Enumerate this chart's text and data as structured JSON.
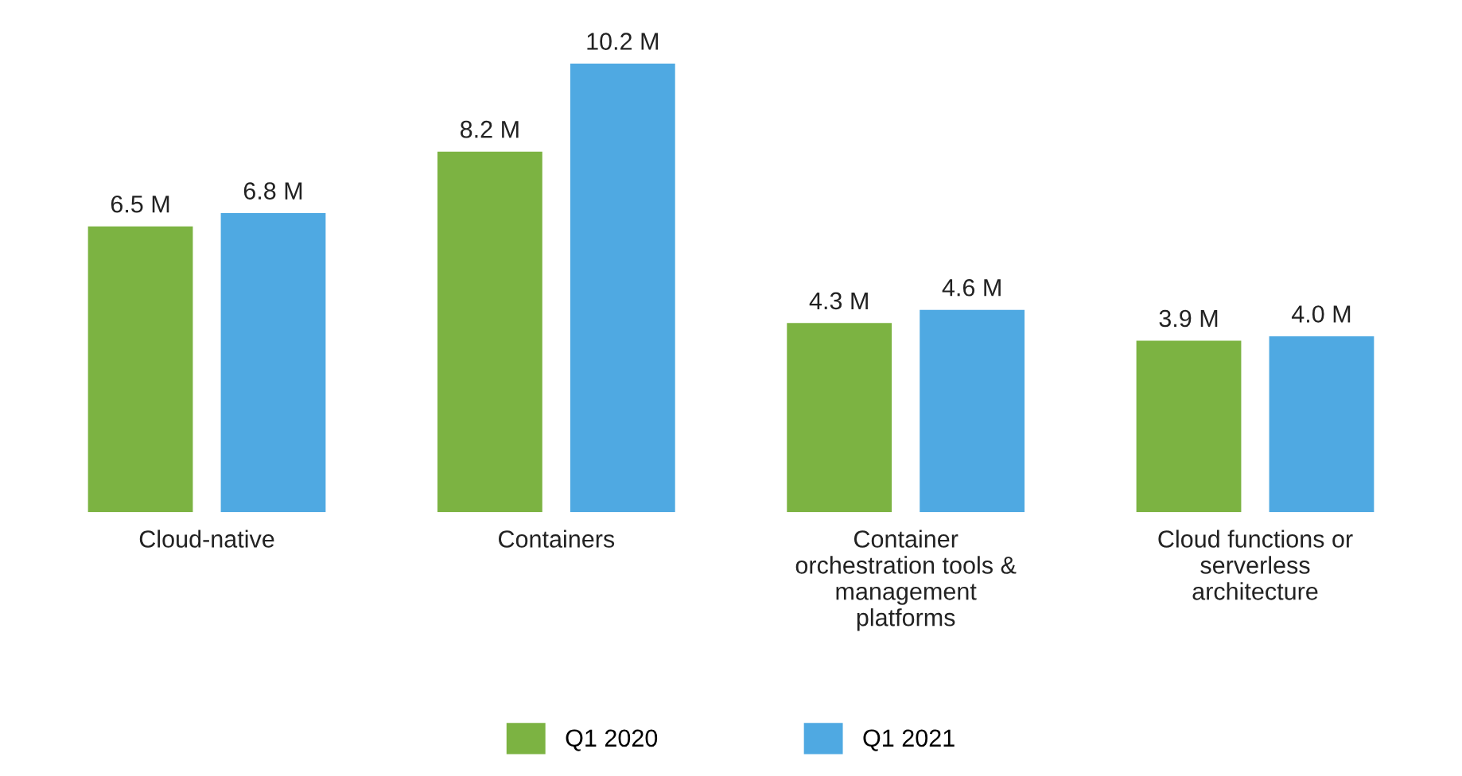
{
  "chart_data": {
    "type": "bar",
    "categories": [
      "Cloud-native",
      "Containers",
      "Container\norchestration tools &\nmanagement\nplatforms",
      "Cloud functions or\nserverless\narchitecture"
    ],
    "series": [
      {
        "name": "Q1 2020",
        "color": "#7cb342",
        "values": [
          6.5,
          8.2,
          4.3,
          3.9
        ],
        "value_labels": [
          "6.5 M",
          "8.2 M",
          "4.3 M",
          "3.9 M"
        ]
      },
      {
        "name": "Q1 2021",
        "color": "#4fa9e2",
        "values": [
          6.8,
          10.2,
          4.6,
          4.0
        ],
        "value_labels": [
          "6.8 M",
          "10.2 M",
          "4.6 M",
          "4.0 M"
        ]
      }
    ],
    "legend": "bottom",
    "grid": false
  }
}
